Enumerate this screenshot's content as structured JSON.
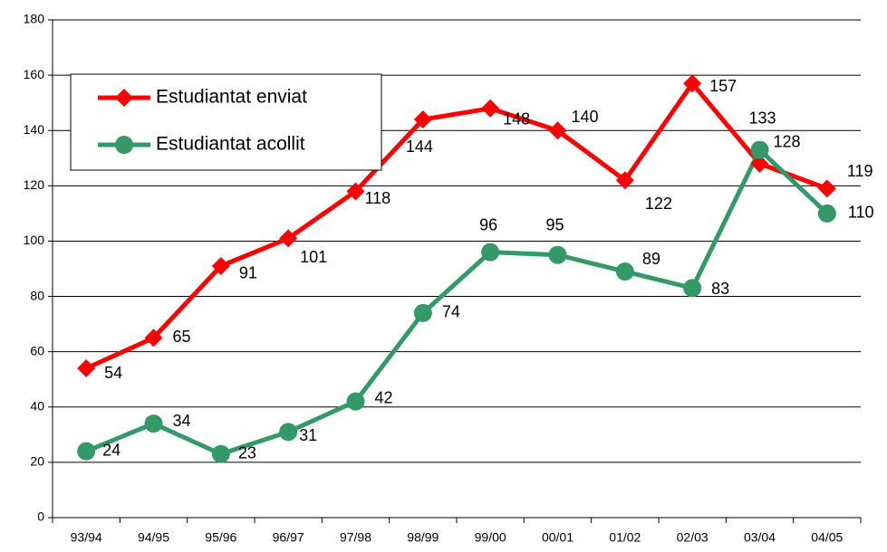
{
  "chart_data": {
    "type": "line",
    "categories": [
      "93/94",
      "94/95",
      "95/96",
      "96/97",
      "97/98",
      "98/99",
      "99/00",
      "00/01",
      "01/02",
      "02/03",
      "03/04",
      "04/05"
    ],
    "series": [
      {
        "name": "Estudiantat enviat",
        "color": "#ff0000",
        "marker": "diamond",
        "values": [
          54,
          65,
          91,
          101,
          118,
          144,
          148,
          140,
          122,
          157,
          128,
          119
        ]
      },
      {
        "name": "Estudiantat acollit",
        "color": "#339966",
        "marker": "circle",
        "values": [
          24,
          34,
          23,
          31,
          42,
          74,
          96,
          95,
          89,
          83,
          133,
          110
        ]
      }
    ],
    "ylim": [
      0,
      180
    ],
    "yticks": [
      0,
      20,
      40,
      60,
      80,
      100,
      120,
      140,
      160,
      180
    ],
    "grid": true
  }
}
